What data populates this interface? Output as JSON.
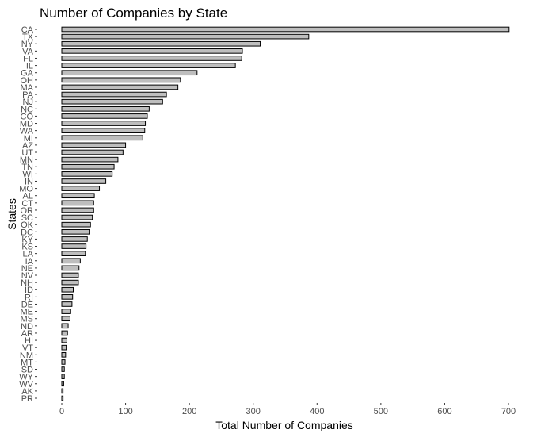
{
  "chart_data": {
    "type": "bar",
    "orientation": "horizontal",
    "title": "Number of Companies by State",
    "xlabel": "Total Number of Companies",
    "ylabel": "States",
    "categories": [
      "CA",
      "TX",
      "NY",
      "VA",
      "FL",
      "IL",
      "GA",
      "OH",
      "MA",
      "PA",
      "NJ",
      "NC",
      "CO",
      "MD",
      "WA",
      "MI",
      "AZ",
      "UT",
      "MN",
      "TN",
      "WI",
      "IN",
      "MO",
      "AL",
      "CT",
      "OR",
      "SC",
      "OK",
      "DC",
      "KY",
      "KS",
      "LA",
      "IA",
      "NE",
      "NV",
      "NH",
      "ID",
      "RI",
      "DE",
      "ME",
      "MS",
      "ND",
      "AR",
      "HI",
      "VT",
      "NM",
      "MT",
      "SD",
      "WY",
      "WV",
      "AK",
      "PR"
    ],
    "values": [
      701,
      387,
      311,
      283,
      282,
      272,
      212,
      186,
      182,
      164,
      158,
      137,
      134,
      131,
      130,
      127,
      100,
      96,
      88,
      82,
      79,
      69,
      59,
      51,
      50,
      50,
      48,
      45,
      43,
      40,
      38,
      37,
      29,
      27,
      26,
      26,
      18,
      17,
      16,
      14,
      13,
      10,
      9,
      8,
      7,
      6,
      5,
      4,
      4,
      3,
      2,
      2
    ],
    "xlim": [
      0,
      700
    ],
    "xticks": [
      "0",
      "100",
      "200",
      "300",
      "400",
      "500",
      "600",
      "700"
    ],
    "grid": false,
    "bar_fill": "#bebebe",
    "bar_stroke": "#000000"
  }
}
